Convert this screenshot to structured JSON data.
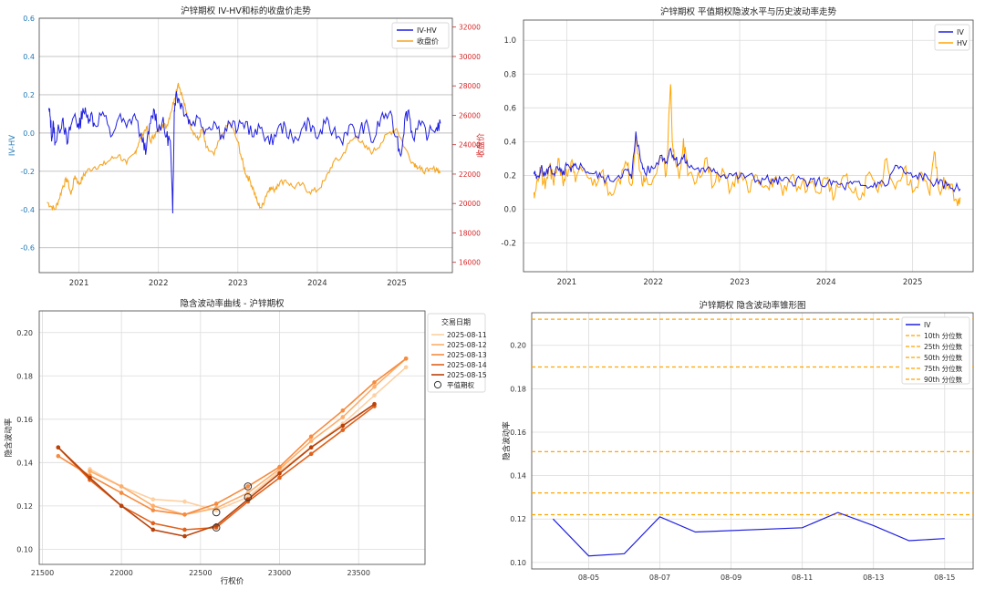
{
  "colors": {
    "iv_blue": "#1f1fe0",
    "hv_orange": "#ffa500",
    "close_orange": "#f5a623",
    "left_axis": "#1f77b4",
    "right_axis": "#d62728",
    "grid": "#dcdcdc",
    "frame": "#444444",
    "pct_line": "#ffa500",
    "smile_series": [
      "#fdd0a2",
      "#fdae6b",
      "#f68b3e",
      "#e0611a",
      "#b8420a"
    ]
  },
  "chart_data": [
    {
      "type": "line",
      "title": "沪锌期权 IV-HV和标的收盘价走势",
      "ylabel": "IV-HV",
      "y2label": "收盘价",
      "x_ticks": [
        "2021",
        "2022",
        "2023",
        "2024",
        "2025"
      ],
      "ylim": [
        -0.73,
        0.6
      ],
      "yticks": [
        "0.6",
        "0.4",
        "0.2",
        "0.0",
        "-0.2",
        "-0.4",
        "-0.6"
      ],
      "y2lim": [
        15300,
        32600
      ],
      "y2ticks": [
        "32000",
        "30000",
        "28000",
        "26000",
        "24000",
        "22000",
        "20000",
        "18000",
        "16000"
      ],
      "legend": [
        "IV-HV",
        "收盘价"
      ],
      "legend_position": "top-right",
      "grid": true,
      "series": [
        {
          "name": "IV-HV",
          "axis": "left",
          "x": [
            2020.62,
            2020.64,
            2020.66,
            2020.68,
            2020.7,
            2020.75,
            2020.8,
            2020.85,
            2020.9,
            2020.95,
            2021.0,
            2021.05,
            2021.1,
            2021.15,
            2021.2,
            2021.3,
            2021.4,
            2021.5,
            2021.6,
            2021.7,
            2021.8,
            2021.85,
            2021.9,
            2021.95,
            2022.0,
            2022.05,
            2022.1,
            2022.15,
            2022.18,
            2022.2,
            2022.22,
            2022.25,
            2022.3,
            2022.35,
            2022.4,
            2022.5,
            2022.6,
            2022.7,
            2022.8,
            2022.9,
            2023.0,
            2023.1,
            2023.2,
            2023.3,
            2023.4,
            2023.5,
            2023.6,
            2023.7,
            2023.8,
            2023.9,
            2024.0,
            2024.1,
            2024.2,
            2024.3,
            2024.4,
            2024.5,
            2024.6,
            2024.7,
            2024.8,
            2024.9,
            2025.0,
            2025.05,
            2025.1,
            2025.15,
            2025.2,
            2025.3,
            2025.4,
            2025.5,
            2025.55
          ],
          "values": [
            0.12,
            0.08,
            -0.03,
            0.05,
            -0.05,
            0.02,
            0.08,
            -0.06,
            0.04,
            0.1,
            0.02,
            0.13,
            0.08,
            0.1,
            0.04,
            0.11,
            -0.02,
            0.08,
            0.03,
            0.1,
            -0.05,
            -0.08,
            0.05,
            0.12,
            0.02,
            0.06,
            -0.02,
            -0.04,
            -0.42,
            0.12,
            0.2,
            0.18,
            0.14,
            0.1,
            0.05,
            0.08,
            0.02,
            0.06,
            -0.01,
            0.05,
            0.02,
            0.06,
            -0.02,
            0.03,
            -0.06,
            0.02,
            0.03,
            -0.05,
            0.02,
            0.06,
            -0.03,
            0.05,
            0.01,
            -0.04,
            0.04,
            -0.02,
            0.05,
            -0.05,
            0.08,
            0.1,
            -0.02,
            -0.12,
            0.07,
            0.12,
            -0.02,
            0.04,
            -0.01,
            0.03,
            0.05
          ]
        },
        {
          "name": "收盘价",
          "axis": "right",
          "x": [
            2020.6,
            2020.65,
            2020.7,
            2020.75,
            2020.8,
            2020.85,
            2020.9,
            2020.95,
            2021.0,
            2021.05,
            2021.1,
            2021.2,
            2021.3,
            2021.4,
            2021.5,
            2021.6,
            2021.7,
            2021.75,
            2021.8,
            2021.85,
            2021.9,
            2021.95,
            2022.0,
            2022.05,
            2022.1,
            2022.15,
            2022.2,
            2022.25,
            2022.3,
            2022.35,
            2022.4,
            2022.45,
            2022.5,
            2022.55,
            2022.6,
            2022.7,
            2022.8,
            2022.9,
            2023.0,
            2023.05,
            2023.1,
            2023.15,
            2023.2,
            2023.25,
            2023.3,
            2023.35,
            2023.4,
            2023.45,
            2023.5,
            2023.6,
            2023.7,
            2023.8,
            2023.9,
            2024.0,
            2024.1,
            2024.2,
            2024.3,
            2024.4,
            2024.5,
            2024.6,
            2024.7,
            2024.8,
            2024.9,
            2025.0,
            2025.1,
            2025.2,
            2025.25,
            2025.3,
            2025.4,
            2025.5,
            2025.55
          ],
          "values": [
            20100,
            19800,
            19600,
            20300,
            21200,
            21700,
            20600,
            21900,
            21300,
            21800,
            22200,
            22500,
            22600,
            23000,
            23300,
            22700,
            23400,
            24100,
            24700,
            25200,
            24200,
            24700,
            24900,
            25400,
            25200,
            26100,
            27100,
            28200,
            27300,
            26200,
            25400,
            24800,
            24300,
            25100,
            23800,
            23300,
            24700,
            25500,
            24200,
            23000,
            22000,
            21600,
            20900,
            20000,
            19700,
            20500,
            21100,
            20900,
            21300,
            21600,
            21100,
            21300,
            20800,
            20900,
            21600,
            22800,
            23100,
            24100,
            24600,
            23800,
            23500,
            24100,
            24800,
            25100,
            23800,
            22800,
            22600,
            22300,
            22200,
            22400,
            22100
          ]
        }
      ]
    },
    {
      "type": "line",
      "title": "沪锌期权 平值期权隐波水平与历史波动率走势",
      "x_ticks": [
        "2021",
        "2022",
        "2023",
        "2024",
        "2025"
      ],
      "ylim": [
        -0.37,
        1.12
      ],
      "yticks": [
        "1.0",
        "0.8",
        "0.6",
        "0.4",
        "0.2",
        "0.0",
        "-0.2"
      ],
      "legend": [
        "IV",
        "HV"
      ],
      "legend_position": "top-right",
      "grid": true,
      "series": [
        {
          "name": "IV",
          "x": [
            2020.62,
            2020.65,
            2020.7,
            2020.75,
            2020.8,
            2020.85,
            2020.9,
            2020.95,
            2021.0,
            2021.05,
            2021.1,
            2021.2,
            2021.3,
            2021.4,
            2021.5,
            2021.6,
            2021.7,
            2021.75,
            2021.8,
            2021.85,
            2021.9,
            2022.0,
            2022.1,
            2022.15,
            2022.2,
            2022.25,
            2022.3,
            2022.35,
            2022.4,
            2022.5,
            2022.6,
            2022.7,
            2022.8,
            2022.9,
            2023.0,
            2023.1,
            2023.2,
            2023.3,
            2023.4,
            2023.5,
            2023.6,
            2023.7,
            2023.8,
            2023.9,
            2024.0,
            2024.1,
            2024.2,
            2024.3,
            2024.4,
            2024.5,
            2024.6,
            2024.7,
            2024.8,
            2024.9,
            2025.0,
            2025.1,
            2025.2,
            2025.3,
            2025.4,
            2025.5,
            2025.55
          ],
          "values": [
            0.22,
            0.18,
            0.24,
            0.2,
            0.25,
            0.21,
            0.24,
            0.2,
            0.26,
            0.22,
            0.27,
            0.24,
            0.21,
            0.19,
            0.17,
            0.2,
            0.23,
            0.18,
            0.46,
            0.3,
            0.22,
            0.24,
            0.32,
            0.28,
            0.36,
            0.3,
            0.27,
            0.31,
            0.26,
            0.24,
            0.22,
            0.24,
            0.2,
            0.21,
            0.19,
            0.2,
            0.17,
            0.18,
            0.16,
            0.17,
            0.16,
            0.18,
            0.15,
            0.17,
            0.14,
            0.16,
            0.13,
            0.15,
            0.14,
            0.13,
            0.16,
            0.14,
            0.26,
            0.22,
            0.19,
            0.2,
            0.17,
            0.15,
            0.14,
            0.13,
            0.12
          ]
        },
        {
          "name": "HV",
          "x": [
            2020.62,
            2020.65,
            2020.7,
            2020.75,
            2020.8,
            2020.85,
            2020.9,
            2020.95,
            2021.0,
            2021.05,
            2021.1,
            2021.2,
            2021.3,
            2021.4,
            2021.5,
            2021.6,
            2021.7,
            2021.75,
            2021.8,
            2021.85,
            2021.9,
            2022.0,
            2022.1,
            2022.15,
            2022.2,
            2022.22,
            2022.25,
            2022.3,
            2022.35,
            2022.4,
            2022.5,
            2022.6,
            2022.7,
            2022.8,
            2022.9,
            2023.0,
            2023.1,
            2023.2,
            2023.3,
            2023.4,
            2023.5,
            2023.6,
            2023.7,
            2023.8,
            2023.9,
            2024.0,
            2024.1,
            2024.2,
            2024.3,
            2024.4,
            2024.5,
            2024.6,
            2024.7,
            2024.8,
            2024.9,
            2025.0,
            2025.1,
            2025.2,
            2025.25,
            2025.3,
            2025.4,
            2025.5,
            2025.55
          ],
          "values": [
            0.1,
            0.15,
            0.22,
            0.12,
            0.26,
            0.14,
            0.3,
            0.18,
            0.2,
            0.28,
            0.16,
            0.24,
            0.14,
            0.22,
            0.1,
            0.18,
            0.26,
            0.14,
            0.45,
            0.22,
            0.16,
            0.18,
            0.3,
            0.2,
            0.74,
            0.4,
            0.3,
            0.18,
            0.42,
            0.2,
            0.16,
            0.3,
            0.14,
            0.24,
            0.12,
            0.22,
            0.1,
            0.2,
            0.14,
            0.18,
            0.08,
            0.2,
            0.12,
            0.16,
            0.1,
            0.18,
            0.08,
            0.2,
            0.1,
            0.06,
            0.22,
            0.1,
            0.3,
            0.12,
            0.24,
            0.1,
            0.22,
            0.08,
            0.34,
            0.12,
            0.16,
            0.06,
            0.07
          ]
        }
      ]
    },
    {
      "type": "line",
      "title": "隐含波动率曲线 - 沪锌期权",
      "xlabel": "行权价",
      "ylabel": "隐含波动率",
      "xlim": [
        21480,
        23920
      ],
      "x_ticks": [
        "21500",
        "22000",
        "22500",
        "23000",
        "23500"
      ],
      "ylim": [
        0.093,
        0.21
      ],
      "yticks": [
        "0.20",
        "0.18",
        "0.16",
        "0.14",
        "0.12",
        "0.10"
      ],
      "legend_title": "交易日期",
      "legend": [
        "2025-08-11",
        "2025-08-12",
        "2025-08-13",
        "2025-08-14",
        "2025-08-15",
        "平值期权"
      ],
      "legend_position": "outside-right",
      "grid": true,
      "series": [
        {
          "name": "2025-08-11",
          "x": [
            21800,
            22000,
            22200,
            22400,
            22600,
            22800,
            23000,
            23200,
            23400,
            23600,
            23800
          ],
          "values": [
            0.137,
            0.129,
            0.123,
            0.122,
            0.118,
            0.124,
            0.136,
            0.147,
            0.158,
            0.171,
            0.184
          ]
        },
        {
          "name": "2025-08-12",
          "x": [
            21800,
            22000,
            22200,
            22400,
            22600,
            22800,
            23000,
            23200,
            23400,
            23600,
            23800
          ],
          "values": [
            0.136,
            0.129,
            0.12,
            0.116,
            0.119,
            0.126,
            0.137,
            0.15,
            0.161,
            0.175,
            0.188
          ]
        },
        {
          "name": "2025-08-13",
          "x": [
            21600,
            21800,
            22000,
            22200,
            22400,
            22600,
            22800,
            23000,
            23200,
            23400,
            23600,
            23800
          ],
          "values": [
            0.143,
            0.134,
            0.126,
            0.118,
            0.116,
            0.121,
            0.129,
            0.138,
            0.152,
            0.164,
            0.177,
            0.188
          ]
        },
        {
          "name": "2025-08-14",
          "x": [
            21600,
            21800,
            22000,
            22200,
            22400,
            22600,
            22800,
            23000,
            23200,
            23400,
            23600
          ],
          "values": [
            0.147,
            0.132,
            0.12,
            0.112,
            0.109,
            0.11,
            0.122,
            0.133,
            0.144,
            0.155,
            0.166
          ]
        },
        {
          "name": "2025-08-15",
          "x": [
            21600,
            21800,
            22000,
            22200,
            22400,
            22600,
            22800,
            23000,
            23200,
            23400,
            23600
          ],
          "values": [
            0.147,
            0.133,
            0.12,
            0.109,
            0.106,
            0.111,
            0.123,
            0.135,
            0.147,
            0.157,
            0.167
          ]
        }
      ],
      "atm_points": {
        "name": "平值期权",
        "x": [
          22600,
          22600,
          22800,
          22800
        ],
        "values": [
          0.117,
          0.11,
          0.129,
          0.124
        ]
      }
    },
    {
      "type": "line",
      "title": "沪锌期权 隐含波动率锥形图",
      "ylabel": "隐含波动率",
      "x_ticks": [
        "08-05",
        "08-07",
        "08-09",
        "08-11",
        "08-13",
        "08-15"
      ],
      "xlim": [
        3.4,
        15.8
      ],
      "ylim": [
        0.097,
        0.215
      ],
      "yticks": [
        "0.20",
        "0.18",
        "0.16",
        "0.14",
        "0.12",
        "0.10"
      ],
      "legend": [
        "IV",
        "10th 分位数",
        "25th 分位数",
        "50th 分位数",
        "75th 分位数",
        "90th 分位数"
      ],
      "legend_position": "top-right",
      "grid": true,
      "series": [
        {
          "name": "IV",
          "x": [
            4,
            5,
            6,
            7,
            8,
            11,
            12,
            13,
            14,
            15
          ],
          "values": [
            0.12,
            0.103,
            0.104,
            0.121,
            0.114,
            0.116,
            0.123,
            0.117,
            0.11,
            0.111
          ]
        }
      ],
      "percentiles": [
        {
          "name": "10th 分位数",
          "value": 0.212
        },
        {
          "name": "25th 分位数",
          "value": 0.19
        },
        {
          "name": "50th 分位数",
          "value": 0.151
        },
        {
          "name": "75th 分位数",
          "value": 0.132
        },
        {
          "name": "90th 分位数",
          "value": 0.122
        }
      ]
    }
  ]
}
